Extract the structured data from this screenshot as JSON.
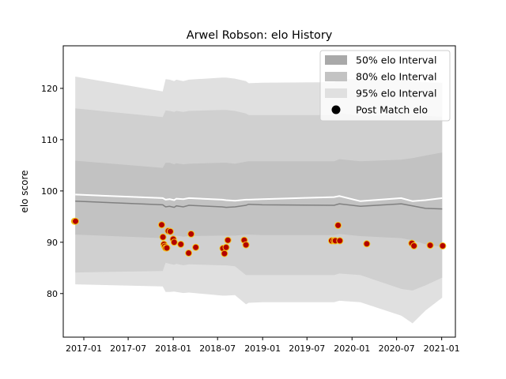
{
  "chart_data": {
    "type": "line",
    "title": "Arwel Robson: elo History",
    "xlabel": "",
    "ylabel": "elo score",
    "xlim": [
      "2016-10-09",
      "2021-02-26"
    ],
    "ylim": [
      71.5,
      128.3
    ],
    "x_ticks": [
      "2017-01",
      "2017-07",
      "2018-01",
      "2018-07",
      "2019-01",
      "2019-07",
      "2020-01",
      "2020-07",
      "2021-01"
    ],
    "y_ticks": [
      80,
      90,
      100,
      110,
      120
    ],
    "grid": false,
    "legend": {
      "position": "top-right",
      "entries": [
        {
          "label": "50% elo Interval",
          "color": "#a9a9a9"
        },
        {
          "label": "80% elo Interval",
          "color": "#c3c3c3"
        },
        {
          "label": "95% elo Interval",
          "color": "#e0e0e0"
        },
        {
          "label": "Post Match elo",
          "color": "#000000"
        }
      ]
    },
    "x": [
      "2016-11-27",
      "2017-11-19",
      "2017-12-01",
      "2017-12-17",
      "2018-01-05",
      "2018-01-14",
      "2018-02-11",
      "2018-03-06",
      "2018-07-20",
      "2018-08-05",
      "2018-09-10",
      "2018-10-25",
      "2018-11-05",
      "2018-12-31",
      "2019-10-20",
      "2019-11-10",
      "2020-02-04",
      "2020-07-20",
      "2020-09-04",
      "2020-10-27",
      "2021-01-03"
    ],
    "bands": {
      "p95_upper": [
        122.3,
        119.4,
        121.8,
        121.7,
        121.4,
        121.7,
        121.4,
        121.7,
        122.1,
        122.1,
        121.9,
        121.4,
        121.0,
        121.1,
        121.2,
        121.8,
        121.8,
        121.8,
        121.4,
        121.2,
        121.1
      ],
      "p80_upper": [
        116.1,
        114.4,
        115.7,
        115.6,
        115.4,
        115.6,
        115.4,
        115.6,
        115.8,
        115.8,
        115.6,
        115.1,
        114.8,
        114.8,
        114.8,
        115.2,
        114.6,
        114.9,
        114.9,
        114.6,
        114.5
      ],
      "p50_upper": [
        105.9,
        104.5,
        105.5,
        105.5,
        105.2,
        105.4,
        105.2,
        105.3,
        105.5,
        105.5,
        105.3,
        105.7,
        105.8,
        105.8,
        105.8,
        106.2,
        105.8,
        106.1,
        106.4,
        106.9,
        107.5
      ],
      "p50_lower": [
        91.5,
        90.8,
        91.5,
        91.4,
        91.2,
        91.3,
        91.1,
        91.2,
        91.3,
        91.3,
        91.3,
        91.5,
        91.5,
        91.4,
        91.4,
        91.6,
        91.2,
        90.8,
        90.4,
        89.6,
        89.1
      ],
      "p80_lower": [
        84.1,
        84.4,
        86.0,
        85.8,
        85.6,
        85.8,
        85.5,
        85.7,
        85.5,
        85.5,
        85.3,
        83.6,
        83.6,
        83.6,
        83.6,
        83.9,
        83.6,
        80.9,
        80.6,
        81.6,
        83.1
      ],
      "p95_lower": [
        81.8,
        81.4,
        80.3,
        80.3,
        80.4,
        80.3,
        80.1,
        80.2,
        79.6,
        79.6,
        79.7,
        77.9,
        78.2,
        78.3,
        78.3,
        78.6,
        78.3,
        75.7,
        74.2,
        76.7,
        79.2
      ],
      "mean_upper": [
        99.3,
        98.6,
        98.3,
        98.4,
        98.2,
        98.5,
        98.4,
        98.6,
        98.3,
        98.2,
        98.1,
        98.3,
        98.3,
        98.4,
        98.8,
        99.0,
        98.0,
        98.6,
        98.0,
        98.2,
        98.6
      ],
      "mean": [
        98.0,
        97.3,
        96.9,
        97.0,
        96.8,
        97.1,
        96.9,
        97.2,
        96.9,
        96.8,
        96.9,
        97.2,
        97.4,
        97.3,
        97.2,
        97.5,
        97.0,
        97.5,
        97.1,
        96.6,
        96.5
      ]
    },
    "series": [
      {
        "name": "Post Match elo",
        "x": [
          "2016-11-24",
          "2016-11-28",
          "2017-11-15",
          "2017-11-20",
          "2017-11-24",
          "2017-11-27",
          "2017-12-01",
          "2017-12-06",
          "2017-12-12",
          "2017-12-20",
          "2018-01-01",
          "2018-01-05",
          "2018-02-01",
          "2018-03-05",
          "2018-03-15",
          "2018-04-03",
          "2018-07-23",
          "2018-07-29",
          "2018-08-05",
          "2018-08-12",
          "2018-10-18",
          "2018-10-25",
          "2019-10-10",
          "2019-10-20",
          "2019-10-25",
          "2019-11-05",
          "2019-11-12",
          "2020-03-01",
          "2020-09-01",
          "2020-09-10",
          "2020-11-15",
          "2021-01-05"
        ],
        "y": [
          94.1,
          94.1,
          93.4,
          91.0,
          89.6,
          89.2,
          88.9,
          88.9,
          92.2,
          92.1,
          90.6,
          90.0,
          89.6,
          87.9,
          91.6,
          89.0,
          88.8,
          87.8,
          89.0,
          90.4,
          90.4,
          89.5,
          90.3,
          90.3,
          90.3,
          93.3,
          90.3,
          89.7,
          89.8,
          89.3,
          89.4,
          89.3
        ]
      }
    ]
  }
}
